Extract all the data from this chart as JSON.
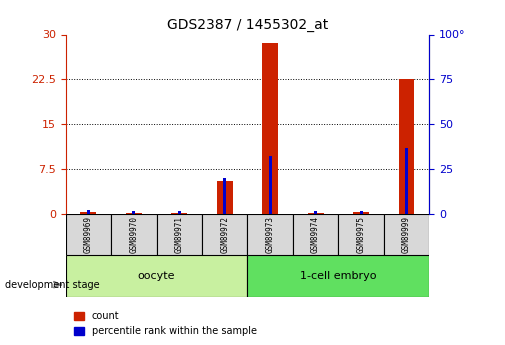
{
  "title": "GDS2387 / 1455302_at",
  "samples": [
    "GSM89969",
    "GSM89970",
    "GSM89971",
    "GSM89972",
    "GSM89973",
    "GSM89974",
    "GSM89975",
    "GSM89999"
  ],
  "count": [
    0.3,
    0.2,
    0.2,
    5.5,
    28.5,
    0.2,
    0.4,
    22.5
  ],
  "percentile": [
    2.0,
    1.5,
    1.5,
    20.0,
    32.0,
    1.5,
    1.5,
    37.0
  ],
  "groups": [
    {
      "label": "oocyte",
      "start": 0,
      "end": 4,
      "color": "#c8f0a0"
    },
    {
      "label": "1-cell embryo",
      "start": 4,
      "end": 8,
      "color": "#60e060"
    }
  ],
  "ylim_left": [
    0,
    30
  ],
  "ylim_right": [
    0,
    100
  ],
  "yticks_left": [
    0,
    7.5,
    15,
    22.5,
    30
  ],
  "yticks_right": [
    0,
    25,
    50,
    75,
    100
  ],
  "ytick_labels_left": [
    "0",
    "7.5",
    "15",
    "22.5",
    "30"
  ],
  "ytick_labels_right": [
    "0",
    "25",
    "50",
    "75",
    "100°"
  ],
  "left_axis_color": "#cc2200",
  "right_axis_color": "#0000cc",
  "bar_color_count": "#cc2200",
  "bar_color_percentile": "#0000cc",
  "grid_color": "#000000",
  "legend_count_label": "count",
  "legend_percentile_label": "percentile rank within the sample",
  "development_stage_label": "development stage",
  "bar_width": 0.35
}
